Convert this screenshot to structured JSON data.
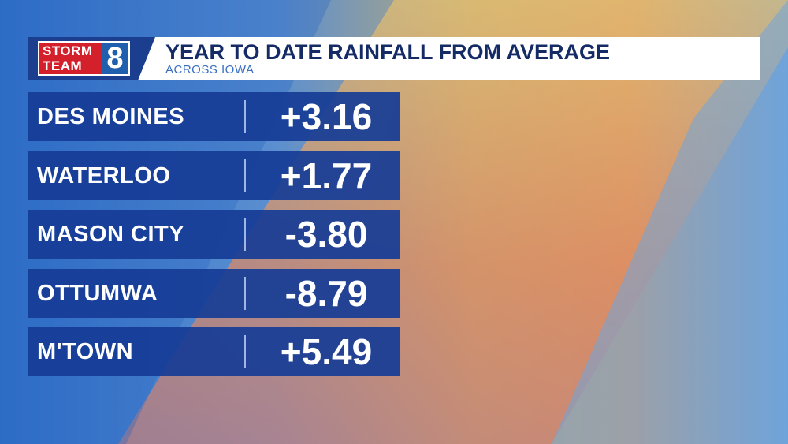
{
  "header": {
    "logo": {
      "line1": "STORM",
      "line2": "TEAM",
      "number": "8"
    },
    "title": "YEAR TO DATE RAINFALL FROM AVERAGE",
    "subtitle": "ACROSS IOWA"
  },
  "table": {
    "rows": [
      [
        "DES MOINES",
        "+3.16"
      ],
      [
        "WATERLOO",
        "+1.77"
      ],
      [
        "MASON CITY",
        "-3.80"
      ],
      [
        "OTTUMWA",
        "-8.79"
      ],
      [
        "M'TOWN",
        "+5.49"
      ]
    ]
  }
}
